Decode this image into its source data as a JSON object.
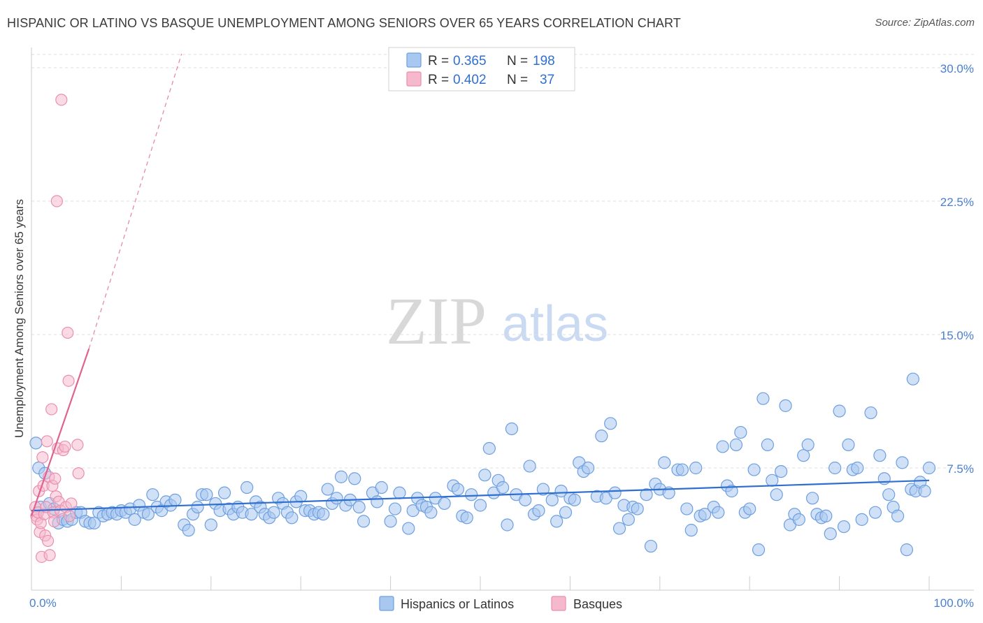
{
  "header": {
    "title": "HISPANIC OR LATINO VS BASQUE UNEMPLOYMENT AMONG SENIORS OVER 65 YEARS CORRELATION CHART",
    "source": "Source: ZipAtlas.com"
  },
  "watermark": {
    "zip": "ZIP",
    "atlas": "atlas"
  },
  "legend": {
    "row1": {
      "r_label": "R =",
      "r_value": "0.365",
      "n_label": "N =",
      "n_value": "198"
    },
    "row2": {
      "r_label": "R =",
      "r_value": "0.402",
      "n_label": "N =",
      "n_value": "37"
    }
  },
  "bottom_legend": {
    "series1": "Hispanics or Latinos",
    "series2": "Basques"
  },
  "colors": {
    "blue_fill": "#a9c8f0",
    "blue_stroke": "#6d9fe0",
    "blue_line": "#2f6fd0",
    "pink_fill": "#f6b8cc",
    "pink_stroke": "#ea8fae",
    "pink_line": "#e0638f",
    "grid": "#dddddd",
    "axis_text": "#4a7fd1",
    "value_text": "#2f6fd0"
  },
  "chart_data": {
    "type": "scatter",
    "title": "HISPANIC OR LATINO VS BASQUE UNEMPLOYMENT AMONG SENIORS OVER 65 YEARS CORRELATION CHART",
    "xlabel": "",
    "ylabel": "Unemployment Among Seniors over 65 years",
    "xlim": [
      0,
      100
    ],
    "ylim": [
      0,
      30
    ],
    "x_tick_labels": [
      "0.0%",
      "100.0%"
    ],
    "y_ticks": [
      7.5,
      15.0,
      22.5,
      30.0
    ],
    "y_tick_labels": [
      "7.5%",
      "15.0%",
      "22.5%",
      "30.0%"
    ],
    "grid": true,
    "legend_position": "top-center",
    "series": [
      {
        "name": "Hispanics or Latinos",
        "color": "#a9c8f0",
        "R": 0.365,
        "N": 198,
        "trend": {
          "x": [
            0,
            100
          ],
          "y": [
            5.1,
            6.8
          ],
          "style": "solid"
        },
        "points": [
          [
            0.5,
            8.9
          ],
          [
            0.8,
            7.5
          ],
          [
            1.0,
            5.3
          ],
          [
            1.5,
            7.2
          ],
          [
            2.0,
            5.5
          ],
          [
            2.5,
            5.2
          ],
          [
            3.0,
            4.4
          ],
          [
            3.5,
            4.6
          ],
          [
            4.0,
            4.5
          ],
          [
            4.5,
            4.6
          ],
          [
            5.0,
            5.0
          ],
          [
            5.5,
            5.0
          ],
          [
            6.0,
            4.5
          ],
          [
            6.5,
            4.4
          ],
          [
            7.0,
            4.4
          ],
          [
            7.5,
            5.0
          ],
          [
            8.0,
            4.8
          ],
          [
            8.5,
            4.9
          ],
          [
            9.0,
            5.0
          ],
          [
            9.5,
            4.9
          ],
          [
            10.0,
            5.1
          ],
          [
            10.5,
            5.0
          ],
          [
            11.0,
            5.2
          ],
          [
            11.5,
            4.6
          ],
          [
            12.0,
            5.4
          ],
          [
            12.5,
            5.0
          ],
          [
            13.0,
            4.9
          ],
          [
            13.5,
            6.0
          ],
          [
            14.0,
            5.3
          ],
          [
            14.5,
            5.1
          ],
          [
            15.0,
            5.6
          ],
          [
            15.5,
            5.4
          ],
          [
            16.0,
            5.7
          ],
          [
            17.0,
            4.3
          ],
          [
            17.5,
            4.0
          ],
          [
            18.0,
            4.9
          ],
          [
            18.5,
            5.3
          ],
          [
            19.0,
            6.0
          ],
          [
            19.5,
            6.0
          ],
          [
            20.0,
            4.3
          ],
          [
            20.5,
            5.5
          ],
          [
            21.0,
            5.1
          ],
          [
            21.5,
            6.1
          ],
          [
            22.0,
            5.2
          ],
          [
            22.5,
            4.9
          ],
          [
            23.0,
            5.3
          ],
          [
            23.5,
            5.0
          ],
          [
            24.0,
            6.4
          ],
          [
            24.5,
            4.9
          ],
          [
            25.0,
            5.6
          ],
          [
            25.5,
            5.3
          ],
          [
            26.0,
            4.9
          ],
          [
            26.5,
            4.7
          ],
          [
            27.0,
            5.0
          ],
          [
            27.5,
            5.8
          ],
          [
            28.0,
            5.5
          ],
          [
            28.5,
            5.0
          ],
          [
            29.0,
            4.7
          ],
          [
            29.5,
            5.6
          ],
          [
            30.0,
            5.9
          ],
          [
            30.5,
            5.1
          ],
          [
            31.0,
            5.1
          ],
          [
            31.5,
            4.9
          ],
          [
            32.0,
            5.0
          ],
          [
            32.5,
            4.9
          ],
          [
            33.0,
            6.3
          ],
          [
            33.5,
            5.5
          ],
          [
            34.0,
            5.8
          ],
          [
            34.5,
            7.0
          ],
          [
            35.0,
            5.4
          ],
          [
            35.5,
            5.7
          ],
          [
            36.0,
            6.9
          ],
          [
            36.5,
            5.3
          ],
          [
            37.0,
            4.5
          ],
          [
            38.0,
            6.1
          ],
          [
            38.5,
            5.6
          ],
          [
            39.0,
            6.4
          ],
          [
            40.0,
            4.5
          ],
          [
            40.5,
            5.2
          ],
          [
            41.0,
            6.1
          ],
          [
            42.0,
            4.1
          ],
          [
            42.5,
            5.1
          ],
          [
            43.0,
            5.8
          ],
          [
            43.5,
            5.4
          ],
          [
            44.0,
            5.3
          ],
          [
            44.5,
            5.0
          ],
          [
            45.0,
            5.8
          ],
          [
            46.0,
            5.5
          ],
          [
            47.0,
            6.5
          ],
          [
            47.5,
            6.3
          ],
          [
            48.0,
            4.8
          ],
          [
            48.5,
            4.7
          ],
          [
            49.0,
            6.0
          ],
          [
            50.0,
            5.4
          ],
          [
            50.5,
            7.1
          ],
          [
            51.0,
            8.6
          ],
          [
            51.5,
            6.1
          ],
          [
            52.0,
            6.8
          ],
          [
            52.5,
            6.4
          ],
          [
            53.0,
            4.3
          ],
          [
            53.5,
            9.7
          ],
          [
            54.0,
            6.0
          ],
          [
            55.0,
            5.7
          ],
          [
            55.5,
            7.6
          ],
          [
            56.0,
            4.9
          ],
          [
            56.5,
            5.1
          ],
          [
            57.0,
            6.3
          ],
          [
            58.0,
            5.7
          ],
          [
            58.5,
            4.5
          ],
          [
            59.0,
            6.2
          ],
          [
            59.5,
            5.0
          ],
          [
            60.0,
            5.8
          ],
          [
            60.5,
            5.7
          ],
          [
            61.0,
            7.8
          ],
          [
            61.5,
            7.3
          ],
          [
            62.0,
            7.5
          ],
          [
            63.0,
            5.9
          ],
          [
            63.5,
            9.3
          ],
          [
            64.0,
            5.8
          ],
          [
            64.5,
            10.0
          ],
          [
            65.0,
            6.1
          ],
          [
            65.5,
            4.1
          ],
          [
            66.0,
            5.4
          ],
          [
            66.5,
            4.6
          ],
          [
            67.0,
            5.3
          ],
          [
            67.5,
            5.2
          ],
          [
            68.5,
            6.0
          ],
          [
            69.0,
            3.1
          ],
          [
            69.5,
            6.6
          ],
          [
            70.0,
            6.3
          ],
          [
            70.5,
            7.8
          ],
          [
            71.0,
            6.1
          ],
          [
            72.0,
            7.4
          ],
          [
            72.5,
            7.4
          ],
          [
            73.0,
            5.2
          ],
          [
            73.5,
            4.0
          ],
          [
            74.0,
            7.5
          ],
          [
            74.5,
            4.8
          ],
          [
            75.0,
            4.9
          ],
          [
            76.0,
            5.3
          ],
          [
            76.5,
            5.0
          ],
          [
            77.0,
            8.7
          ],
          [
            77.5,
            6.5
          ],
          [
            78.0,
            6.2
          ],
          [
            78.5,
            8.8
          ],
          [
            79.0,
            9.5
          ],
          [
            79.5,
            5.0
          ],
          [
            80.0,
            5.2
          ],
          [
            80.5,
            7.4
          ],
          [
            81.0,
            2.9
          ],
          [
            81.5,
            11.4
          ],
          [
            82.0,
            8.8
          ],
          [
            82.5,
            6.8
          ],
          [
            83.0,
            6.0
          ],
          [
            83.5,
            7.3
          ],
          [
            84.0,
            11.0
          ],
          [
            84.5,
            4.3
          ],
          [
            85.0,
            4.9
          ],
          [
            85.5,
            4.6
          ],
          [
            86.0,
            8.2
          ],
          [
            86.5,
            8.8
          ],
          [
            87.0,
            5.8
          ],
          [
            87.5,
            4.9
          ],
          [
            88.0,
            4.7
          ],
          [
            88.5,
            4.8
          ],
          [
            89.0,
            3.8
          ],
          [
            89.5,
            7.5
          ],
          [
            90.0,
            10.7
          ],
          [
            90.5,
            4.2
          ],
          [
            91.0,
            8.8
          ],
          [
            91.5,
            7.4
          ],
          [
            92.0,
            7.5
          ],
          [
            92.5,
            4.6
          ],
          [
            93.5,
            10.6
          ],
          [
            94.0,
            5.0
          ],
          [
            94.5,
            8.2
          ],
          [
            95.0,
            6.9
          ],
          [
            95.5,
            6.0
          ],
          [
            96.0,
            5.3
          ],
          [
            96.5,
            4.8
          ],
          [
            97.0,
            7.8
          ],
          [
            97.5,
            2.9
          ],
          [
            98.0,
            6.3
          ],
          [
            98.5,
            6.2
          ],
          [
            98.2,
            12.5
          ],
          [
            99.0,
            6.7
          ],
          [
            99.5,
            6.2
          ],
          [
            100.0,
            7.5
          ]
        ]
      },
      {
        "name": "Basques",
        "color": "#f6b8cc",
        "R": 0.402,
        "N": 37,
        "trend": {
          "x": [
            0,
            5
          ],
          "y": [
            4.8,
            14.2
          ],
          "extended_to": [
            13.3,
            30.0
          ],
          "style": "solid+dashed"
        },
        "points": [
          [
            0.2,
            5.3
          ],
          [
            0.3,
            4.8
          ],
          [
            0.4,
            4.6
          ],
          [
            0.5,
            5.0
          ],
          [
            0.6,
            6.2
          ],
          [
            0.7,
            3.9
          ],
          [
            0.8,
            4.4
          ],
          [
            0.9,
            2.5
          ],
          [
            1.0,
            8.1
          ],
          [
            1.1,
            6.5
          ],
          [
            1.2,
            4.9
          ],
          [
            1.3,
            3.7
          ],
          [
            1.4,
            5.3
          ],
          [
            1.5,
            9.0
          ],
          [
            1.6,
            3.4
          ],
          [
            1.7,
            7.0
          ],
          [
            1.8,
            2.6
          ],
          [
            2.0,
            10.8
          ],
          [
            2.1,
            6.5
          ],
          [
            2.2,
            5.0
          ],
          [
            2.3,
            4.5
          ],
          [
            2.4,
            6.9
          ],
          [
            2.5,
            5.9
          ],
          [
            2.6,
            22.5
          ],
          [
            2.7,
            8.6
          ],
          [
            2.8,
            5.6
          ],
          [
            3.0,
            5.1
          ],
          [
            3.1,
            28.2
          ],
          [
            3.3,
            8.5
          ],
          [
            3.5,
            8.7
          ],
          [
            3.6,
            5.3
          ],
          [
            3.8,
            15.1
          ],
          [
            3.9,
            12.4
          ],
          [
            4.0,
            4.8
          ],
          [
            4.2,
            5.5
          ],
          [
            4.9,
            8.8
          ],
          [
            5.0,
            7.2
          ]
        ]
      }
    ]
  }
}
